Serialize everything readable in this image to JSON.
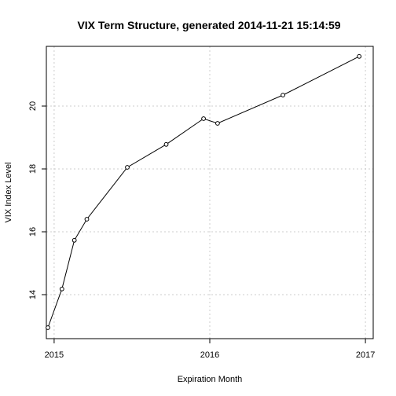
{
  "chart_data": {
    "type": "line",
    "title": "VIX Term Structure, generated  2014-11-21 15:14:59",
    "xlabel": "Expiration Month",
    "ylabel": "VIX Index Level",
    "xlim": [
      2014.95,
      2017.05
    ],
    "ylim": [
      12.6,
      21.9
    ],
    "x_ticks": [
      2015,
      2016,
      2017
    ],
    "x_tick_labels": [
      "2015",
      "2016",
      "2017"
    ],
    "y_ticks": [
      14,
      16,
      18,
      20
    ],
    "y_tick_labels": [
      "14",
      "16",
      "18",
      "20"
    ],
    "grid": true,
    "series": [
      {
        "x": [
          2014.96,
          2015.05,
          2015.13,
          2015.21,
          2015.47,
          2015.72,
          2015.96,
          2016.05,
          2016.47,
          2016.96
        ],
        "values": [
          12.95,
          14.18,
          15.73,
          16.4,
          18.05,
          18.78,
          19.6,
          19.45,
          20.35,
          21.58
        ]
      }
    ]
  }
}
